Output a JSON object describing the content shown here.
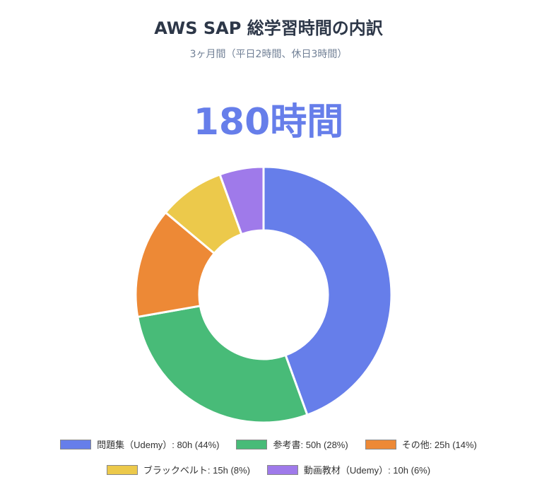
{
  "chart_data": {
    "type": "pie",
    "title": "AWS SAP 総学習時間の内訳",
    "subtitle": "3ヶ月間（平日2時間、休日3時間）",
    "total_label": "180時間",
    "donut": true,
    "legend_position": "bottom",
    "slices": [
      {
        "label": "問題集（Udemy）: 80h (44%)",
        "value": 80,
        "color": "#667eea"
      },
      {
        "label": "参考書: 50h (28%)",
        "value": 50,
        "color": "#48bb78"
      },
      {
        "label": "その他: 25h (14%)",
        "value": 25,
        "color": "#ed8936"
      },
      {
        "label": "ブラックベルト: 15h (8%)",
        "value": 15,
        "color": "#ecc94b"
      },
      {
        "label": "動画教材（Udemy）: 10h (6%)",
        "value": 10,
        "color": "#9f7aea"
      }
    ]
  }
}
